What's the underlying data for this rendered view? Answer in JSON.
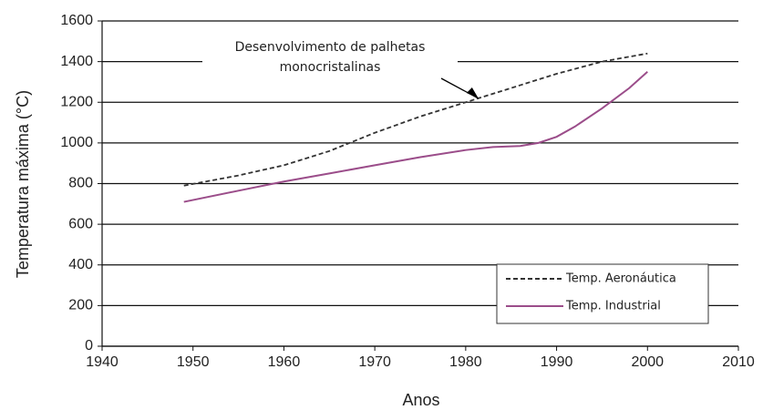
{
  "chart_data": {
    "type": "line",
    "x_label": "Anos",
    "y_label": "Temperatura máxima (°C)",
    "annotation": [
      "Desenvolvimento de palhetas",
      "monocristalinas"
    ],
    "annotation_x": 1981,
    "annotation_y": 1210,
    "series": [
      {
        "name": "Temp. Aeronáutica",
        "color": "#333333",
        "dash": true,
        "x": [
          1949,
          1955,
          1960,
          1965,
          1970,
          1975,
          1980,
          1985,
          1990,
          1995,
          2000
        ],
        "values": [
          790,
          840,
          890,
          960,
          1050,
          1130,
          1200,
          1270,
          1340,
          1400,
          1440
        ]
      },
      {
        "name": "Temp. Industrial",
        "color": "#9b4d8a",
        "dash": false,
        "x": [
          1949,
          1955,
          1960,
          1965,
          1970,
          1975,
          1980,
          1983,
          1986,
          1988,
          1990,
          1992,
          1995,
          1998,
          2000
        ],
        "values": [
          710,
          765,
          810,
          850,
          890,
          930,
          965,
          980,
          985,
          1000,
          1030,
          1080,
          1170,
          1270,
          1350
        ]
      }
    ],
    "xlim": [
      1940,
      2010
    ],
    "xticks": [
      1940,
      1950,
      1960,
      1970,
      1980,
      1990,
      2000,
      2010
    ],
    "ylim": [
      0,
      1600
    ],
    "yticks": [
      0,
      200,
      400,
      600,
      800,
      1000,
      1200,
      1400,
      1600
    ],
    "grid": true,
    "legend": "lower right"
  }
}
